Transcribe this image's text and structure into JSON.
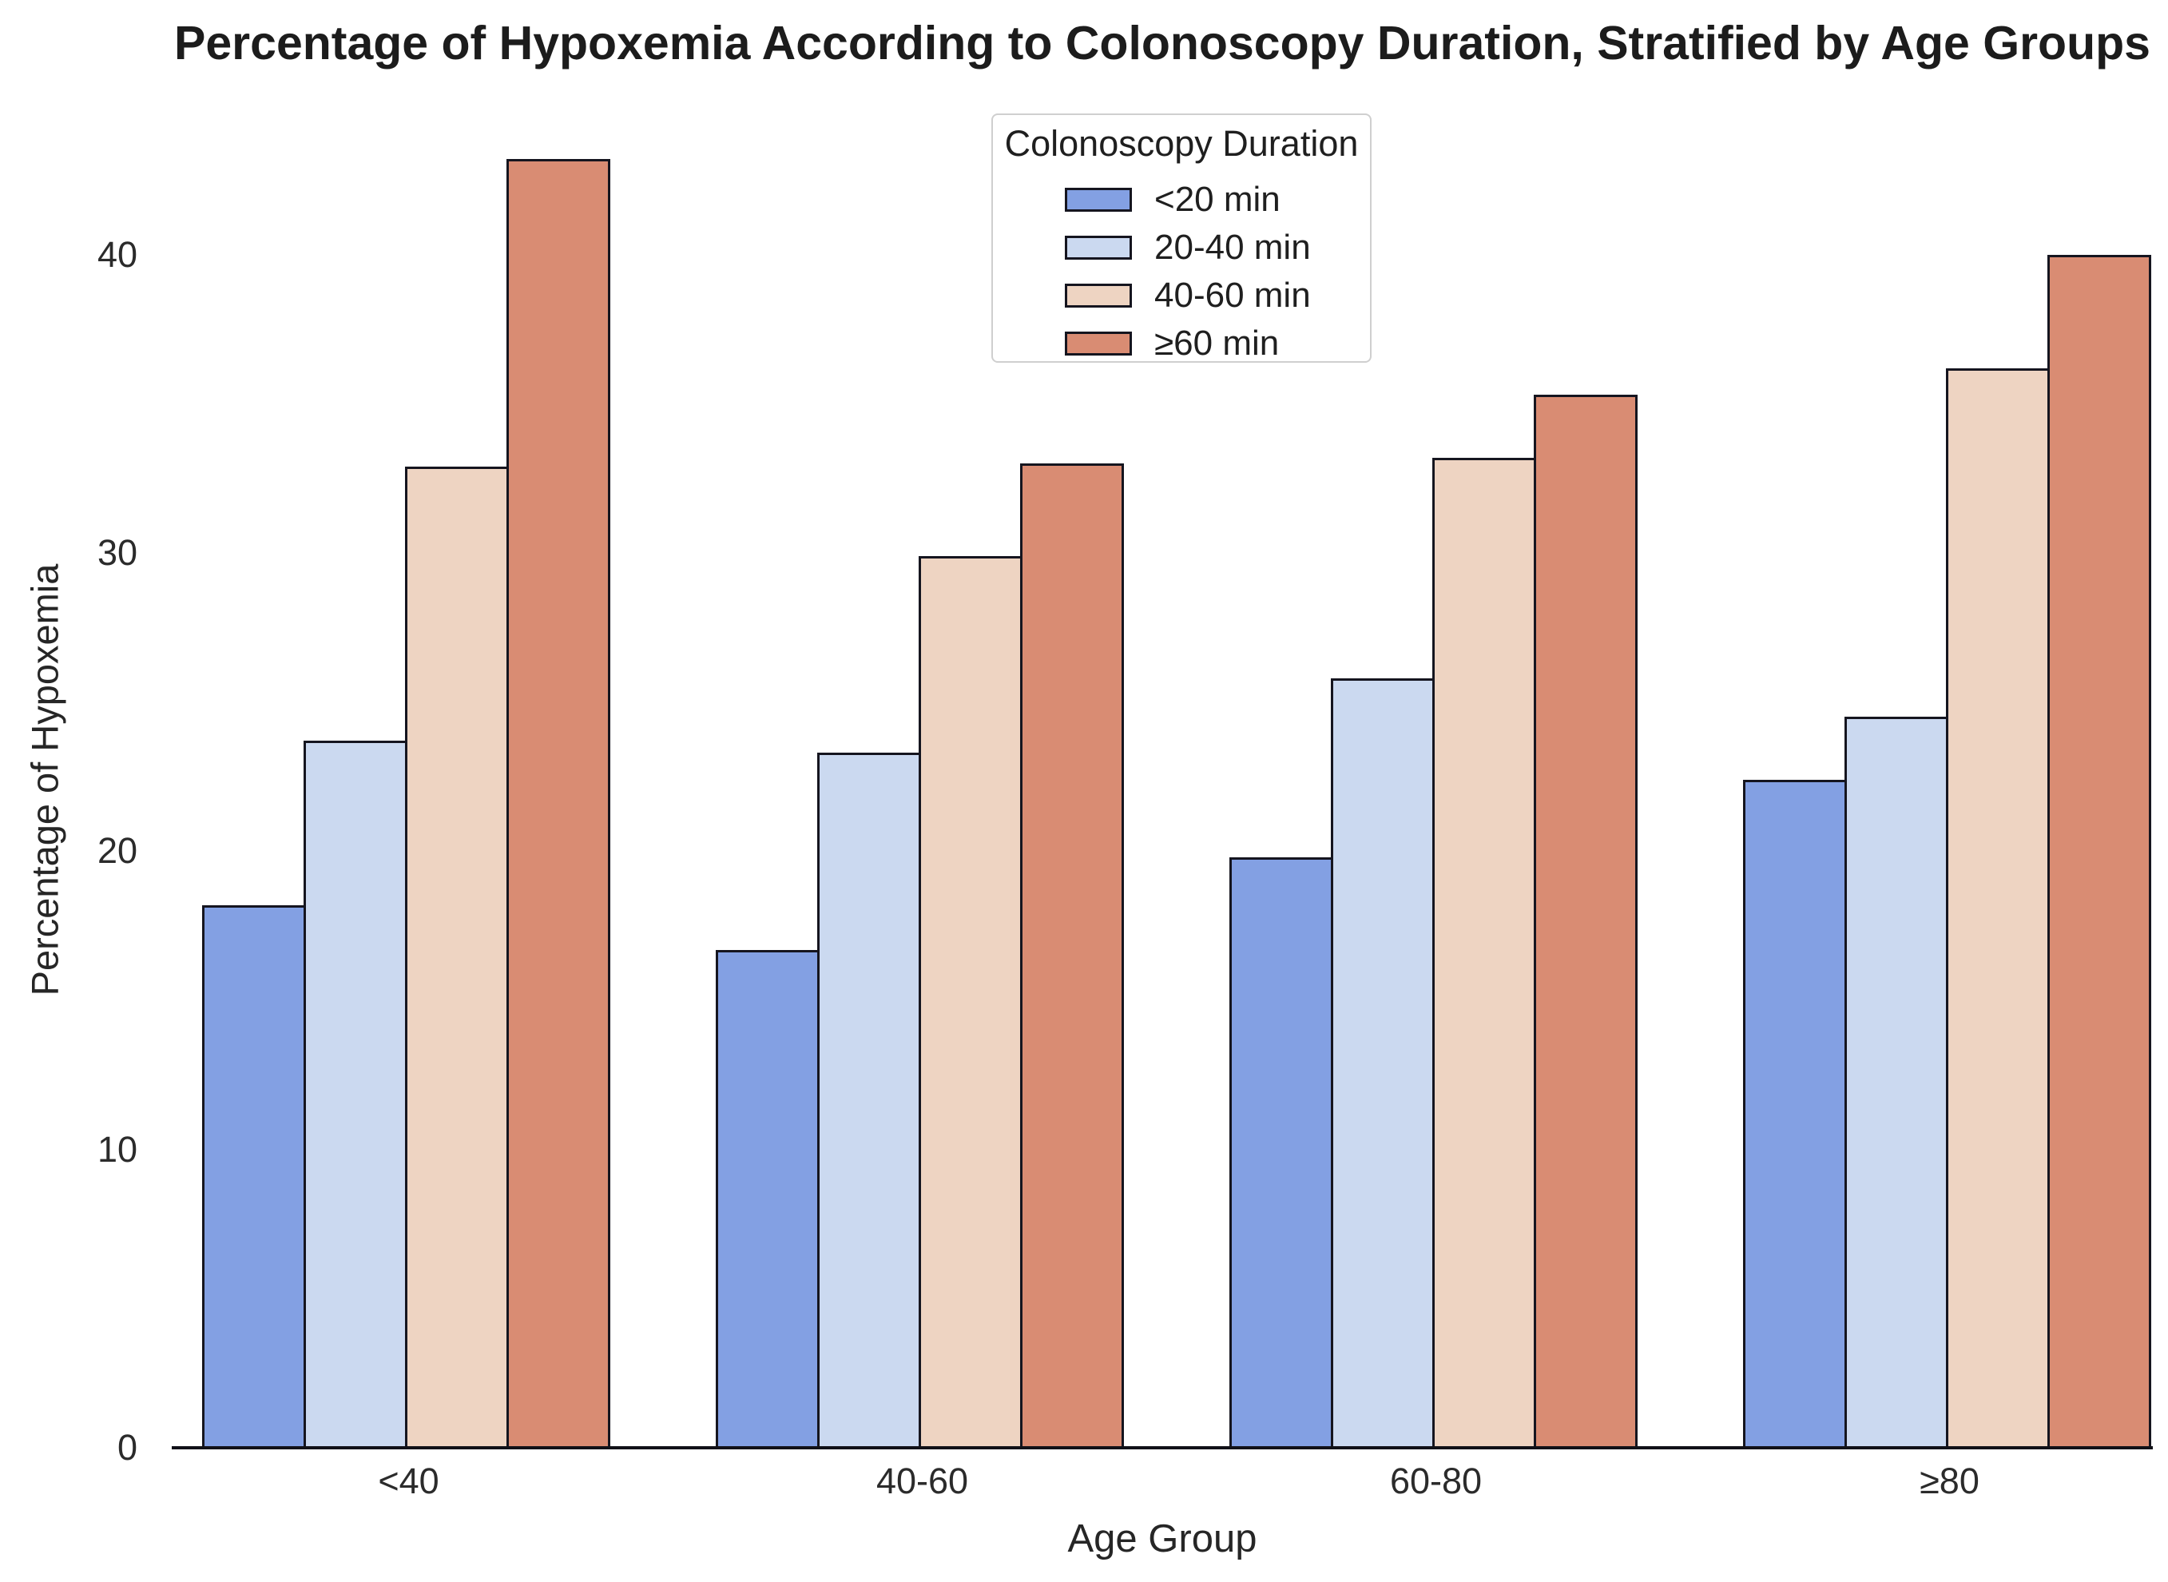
{
  "chart_data": {
    "type": "bar",
    "title": "Percentage of Hypoxemia According to Colonoscopy Duration, Stratified by Age Groups",
    "xlabel": "Age Group",
    "ylabel": "Percentage of Hypoxemia",
    "categories": [
      "<40",
      "40-60",
      "60-80",
      "≥80"
    ],
    "yticks": [
      0,
      10,
      20,
      30,
      40
    ],
    "ylim": [
      0,
      44.8
    ],
    "grid": false,
    "legend_title": "Colonoscopy Duration",
    "legend_position": "upper-center",
    "bar_edge_color": "#15151f",
    "series": [
      {
        "name": "<20 min",
        "color": "#83a0e3",
        "values": [
          18.2,
          16.7,
          19.8,
          22.4
        ]
      },
      {
        "name": "20-40 min",
        "color": "#cbd9f0",
        "values": [
          23.7,
          23.3,
          25.8,
          24.5
        ]
      },
      {
        "name": "40-60 min",
        "color": "#eed4c2",
        "values": [
          32.9,
          29.9,
          33.2,
          36.2
        ]
      },
      {
        "name": "≥60 min",
        "color": "#d98c73",
        "values": [
          43.2,
          33.0,
          35.3,
          40.0
        ]
      }
    ]
  }
}
